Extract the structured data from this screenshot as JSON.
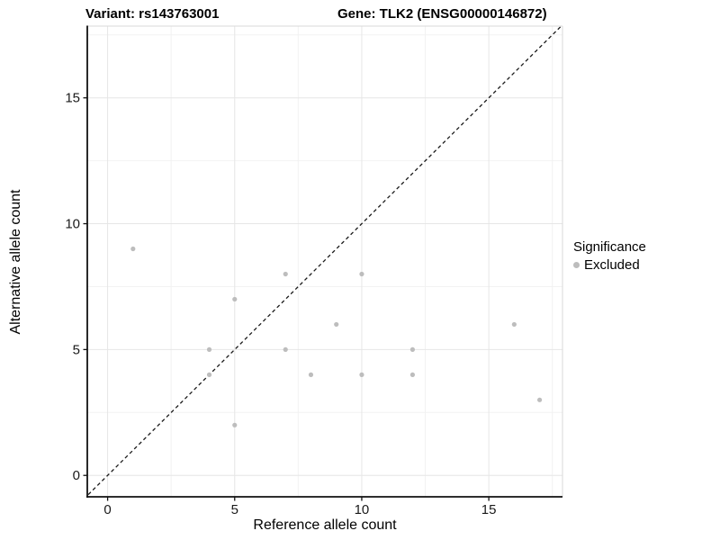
{
  "titles": {
    "variant": "Variant: rs143763001",
    "gene": "Gene: TLK2 (ENSG00000146872)"
  },
  "chart_data": {
    "type": "scatter",
    "xlabel": "Reference allele count",
    "ylabel": "Alternative allele count",
    "xlim": [
      -0.8,
      17.9
    ],
    "ylim": [
      -0.85,
      17.85
    ],
    "x_ticks": [
      0,
      5,
      10,
      15
    ],
    "y_ticks": [
      0,
      5,
      10,
      15
    ],
    "x_minor": [
      2.5,
      7.5,
      12.5,
      17.5
    ],
    "y_minor": [
      2.5,
      7.5,
      12.5,
      17.5
    ],
    "grid": true,
    "reference_line": {
      "style": "dashed",
      "slope": 1,
      "intercept": 0,
      "color": "#1a1a1a"
    },
    "series": [
      {
        "name": "Excluded",
        "color": "#bdbdbd",
        "points": [
          [
            1,
            9
          ],
          [
            4,
            4
          ],
          [
            4,
            5
          ],
          [
            5,
            2
          ],
          [
            5,
            7
          ],
          [
            7,
            5
          ],
          [
            7,
            8
          ],
          [
            8,
            4
          ],
          [
            9,
            6
          ],
          [
            10,
            4
          ],
          [
            10,
            8
          ],
          [
            12,
            4
          ],
          [
            12,
            5
          ],
          [
            16,
            6
          ],
          [
            17,
            3
          ]
        ]
      }
    ],
    "legend": {
      "title": "Significance",
      "position": "right",
      "entries": [
        {
          "label": "Excluded",
          "color": "#bdbdbd"
        }
      ]
    },
    "colors": {
      "grid_major": "#e6e6e6",
      "grid_minor": "#f2f2f2",
      "axis_line": "#111111",
      "panel_border": "#d9d9d9",
      "tick_label": "#1a1a1a"
    }
  }
}
